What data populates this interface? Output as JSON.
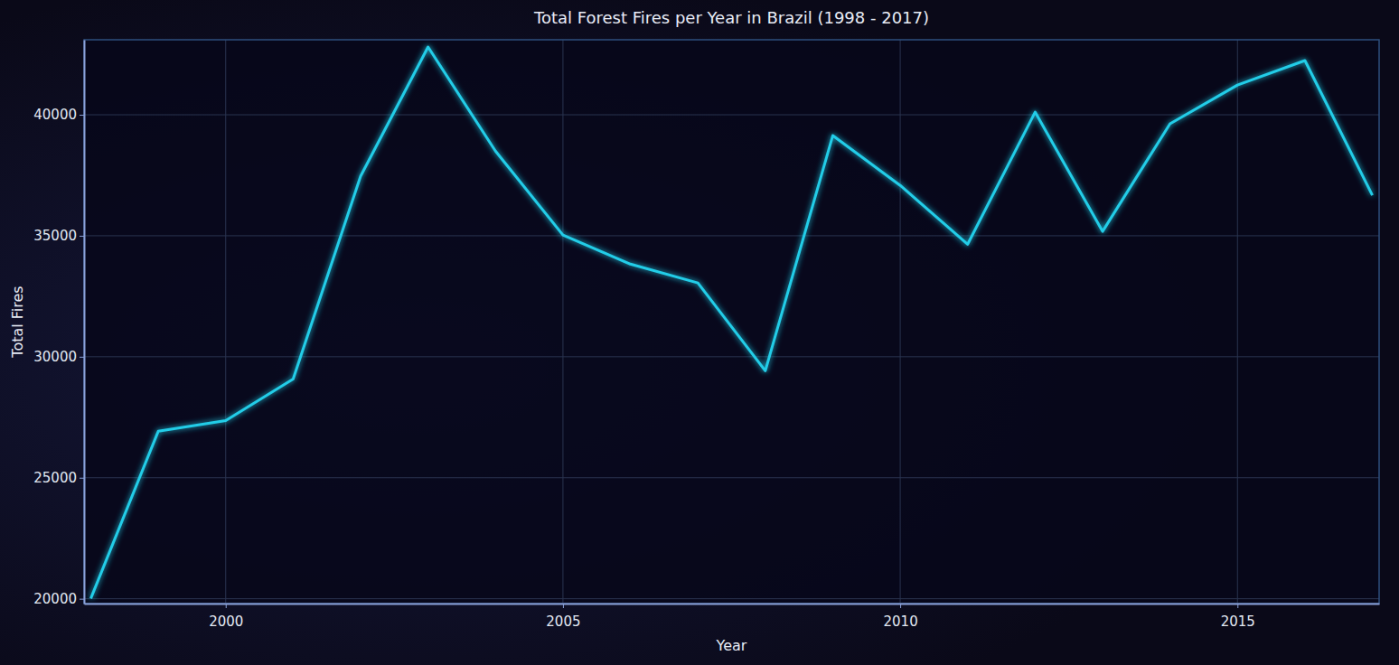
{
  "chart_data": {
    "type": "line",
    "title": "Total Forest Fires per Year in Brazil (1998 - 2017)",
    "x_label": "Year",
    "y_label": "Total Fires",
    "x": [
      1998,
      1999,
      2000,
      2001,
      2002,
      2003,
      2004,
      2005,
      2006,
      2007,
      2008,
      2009,
      2010,
      2011,
      2012,
      2013,
      2014,
      2015,
      2016,
      2017
    ],
    "values": [
      20010,
      26920,
      27360,
      29080,
      37460,
      42800,
      38500,
      35030,
      33830,
      33050,
      29420,
      39140,
      37080,
      34650,
      40110,
      35180,
      39630,
      41230,
      42240,
      36670
    ],
    "color": "#22cde8",
    "xlim": [
      1997.9,
      2017.1
    ],
    "xticks": [
      2000,
      2005,
      2010,
      2015
    ],
    "ylim": [
      19800,
      43100
    ],
    "yticks": [
      20000,
      25000,
      30000,
      35000,
      40000
    ],
    "grid": true
  }
}
